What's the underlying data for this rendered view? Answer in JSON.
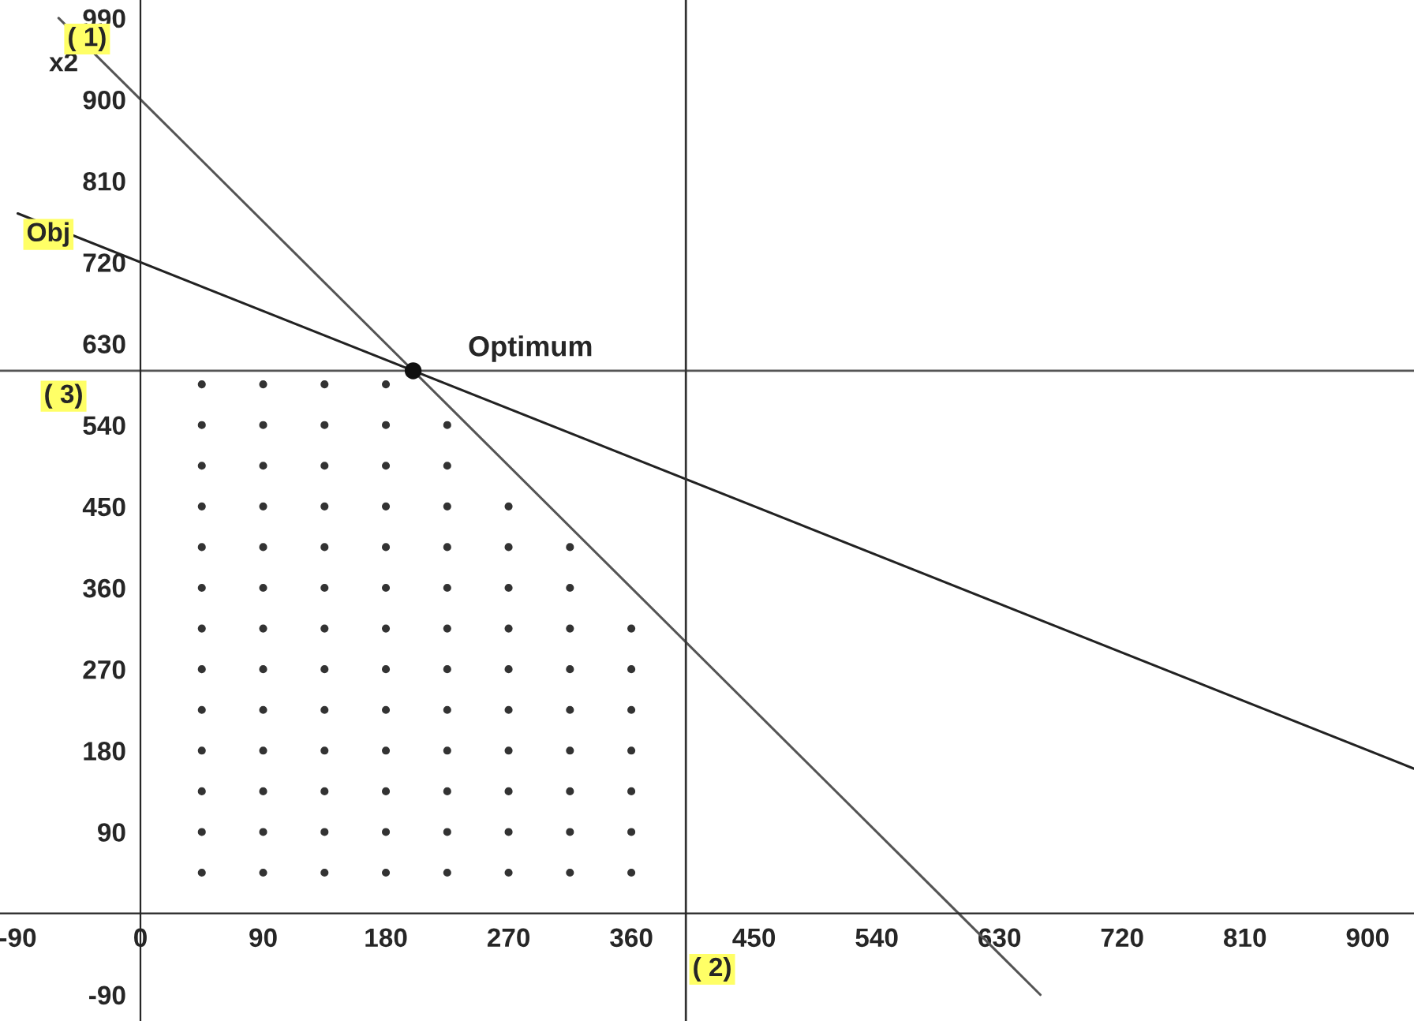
{
  "chart_data": {
    "type": "line",
    "ylabel": "x2",
    "xlim": [
      -103,
      934
    ],
    "ylim": [
      -119,
      1010
    ],
    "xticks": [
      -90,
      0,
      90,
      180,
      270,
      360,
      450,
      540,
      630,
      720,
      810,
      900
    ],
    "yticks": [
      -90,
      90,
      180,
      270,
      360,
      450,
      540,
      630,
      720,
      810,
      900,
      990
    ],
    "grid": false,
    "legend": false,
    "series": [
      {
        "name": "( 1)",
        "color": "#555555",
        "x": [
          -60,
          660
        ],
        "values": [
          990,
          -90
        ]
      },
      {
        "name": "Obj",
        "color": "#222222",
        "x": [
          -90,
          934
        ],
        "values": [
          774,
          160
        ]
      },
      {
        "type": "scatter",
        "color": "#333333",
        "marker": "circle",
        "x": [
          45,
          90,
          135,
          180,
          225,
          270,
          315,
          360,
          45,
          90,
          135,
          180,
          225,
          270,
          315,
          360,
          45,
          90,
          135,
          180,
          225,
          270,
          315,
          360,
          45,
          90,
          135,
          180,
          225,
          270,
          315,
          360,
          45,
          90,
          135,
          180,
          225,
          270,
          315,
          360,
          45,
          90,
          135,
          180,
          225,
          270,
          315,
          360,
          45,
          90,
          135,
          180,
          225,
          270,
          315,
          360,
          45,
          90,
          135,
          180,
          225,
          270,
          315,
          45,
          90,
          135,
          180,
          225,
          270,
          315,
          45,
          90,
          135,
          180,
          225,
          270,
          45,
          90,
          135,
          180,
          225,
          45,
          90,
          135,
          180,
          225,
          45,
          90,
          135,
          180
        ],
        "values": [
          45,
          45,
          45,
          45,
          45,
          45,
          45,
          45,
          90,
          90,
          90,
          90,
          90,
          90,
          90,
          90,
          135,
          135,
          135,
          135,
          135,
          135,
          135,
          135,
          180,
          180,
          180,
          180,
          180,
          180,
          180,
          180,
          225,
          225,
          225,
          225,
          225,
          225,
          225,
          225,
          270,
          270,
          270,
          270,
          270,
          270,
          270,
          270,
          315,
          315,
          315,
          315,
          315,
          315,
          315,
          315,
          360,
          360,
          360,
          360,
          360,
          360,
          360,
          405,
          405,
          405,
          405,
          405,
          405,
          405,
          450,
          450,
          450,
          450,
          450,
          450,
          495,
          495,
          495,
          495,
          495,
          540,
          540,
          540,
          540,
          540,
          585,
          585,
          585,
          585
        ]
      },
      {
        "type": "scatter",
        "color": "#111111",
        "marker": "circle",
        "x": [
          200
        ],
        "values": [
          600
        ]
      }
    ],
    "ref_lines": [
      {
        "axis": "y",
        "value": 600,
        "color": "#555555"
      },
      {
        "axis": "x",
        "value": 400,
        "color": "#333333"
      }
    ],
    "annotations": [
      {
        "text": "Optimum",
        "x": 200,
        "y": 600
      },
      "( 3)",
      "( 2)"
    ]
  }
}
